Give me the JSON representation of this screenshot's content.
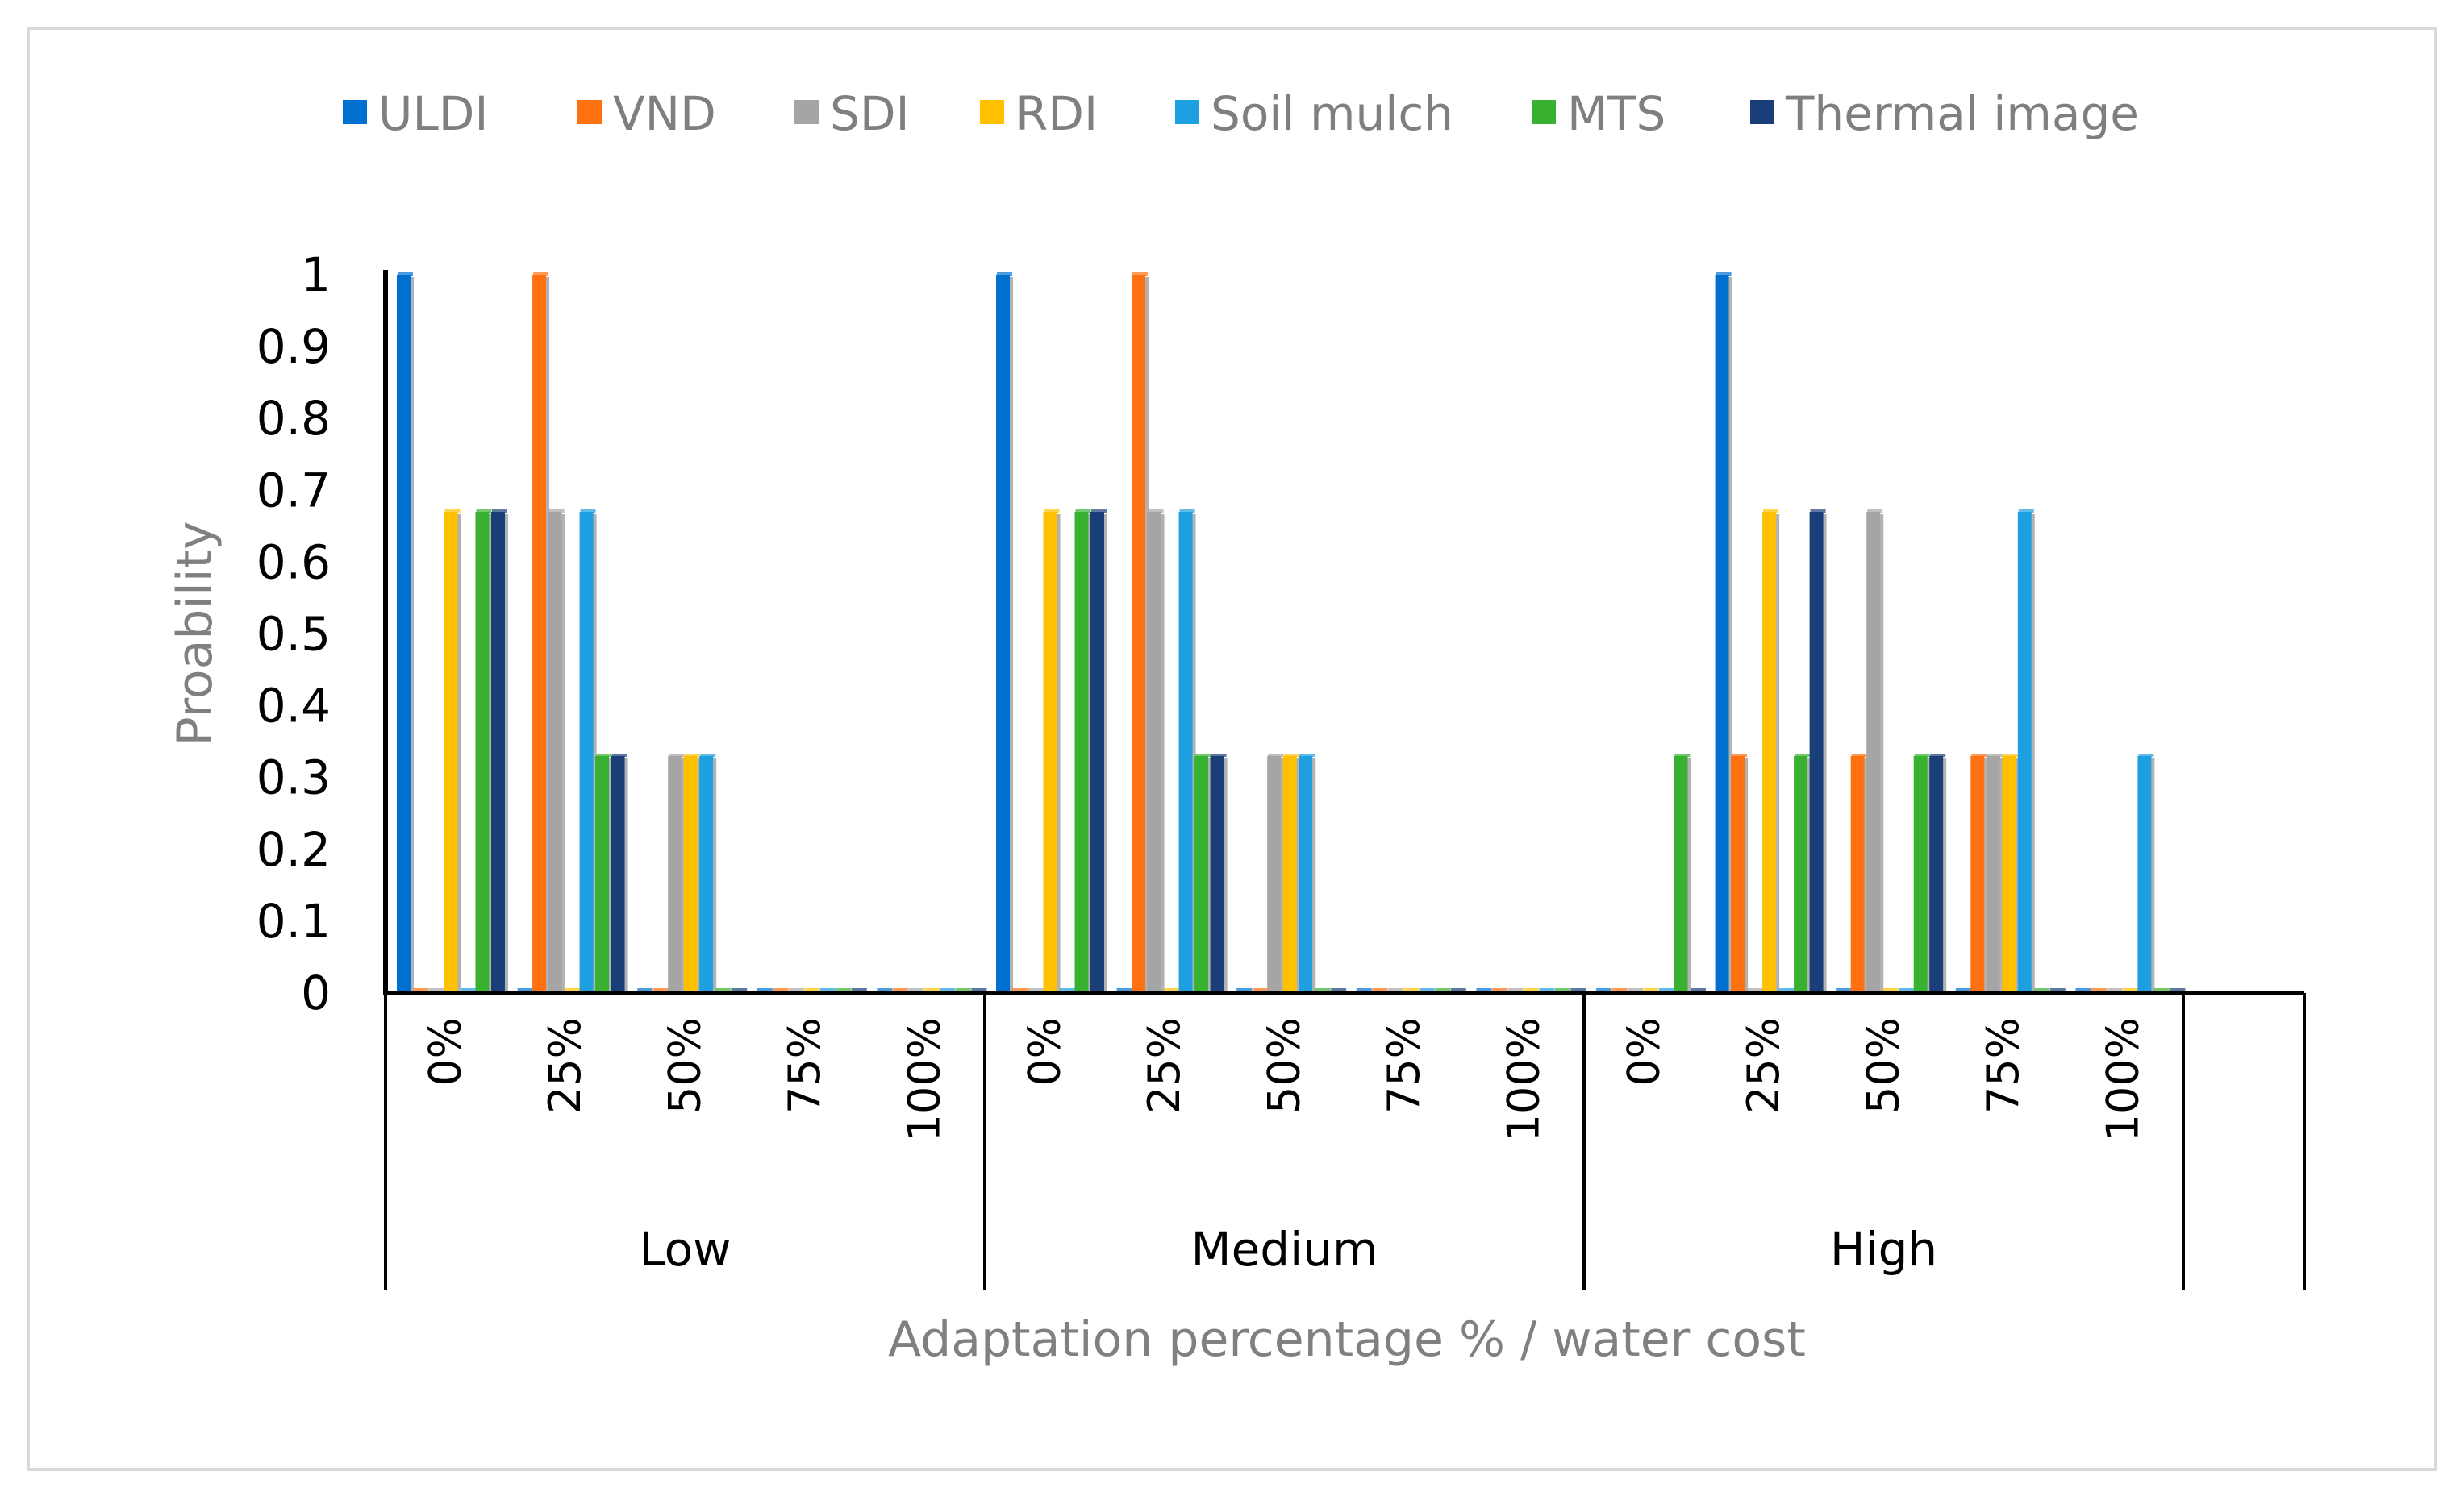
{
  "chart_data": {
    "type": "bar",
    "title": "",
    "xlabel": "Adaptation percentage % / water cost",
    "ylabel": "Proability",
    "ylim": [
      0,
      1
    ],
    "yticks": [
      "0",
      "0.1",
      "0.2",
      "0.3",
      "0.4",
      "0.5",
      "0.6",
      "0.7",
      "0.8",
      "0.9",
      "1"
    ],
    "grid": false,
    "legend_position": "top",
    "groups": [
      "Low",
      "Medium",
      "High"
    ],
    "subcategories": [
      "0%",
      "25%",
      "50%",
      "75%",
      "100%"
    ],
    "categories": [
      "Low 0%",
      "Low 25%",
      "Low 50%",
      "Low 75%",
      "Low 100%",
      "Medium 0%",
      "Medium 25%",
      "Medium 50%",
      "Medium 75%",
      "Medium 100%",
      "High 0%",
      "High 25%",
      "High 50%",
      "High 75%",
      "High 100%"
    ],
    "series": [
      {
        "name": "ULDI",
        "color": "#0070d0",
        "values": [
          1,
          0,
          0,
          0,
          0,
          1,
          0,
          0,
          0,
          0,
          0,
          1,
          0,
          0,
          0
        ]
      },
      {
        "name": "VND",
        "color": "#ff7010",
        "values": [
          0,
          1,
          0,
          0,
          0,
          0,
          1,
          0,
          0,
          0,
          0,
          0.33,
          0.33,
          0.33,
          0
        ]
      },
      {
        "name": "SDI",
        "color": "#a5a5a5",
        "values": [
          0,
          0.67,
          0.33,
          0,
          0,
          0,
          0.67,
          0.33,
          0,
          0,
          0,
          0,
          0.67,
          0.33,
          0
        ]
      },
      {
        "name": "RDI",
        "color": "#ffc000",
        "values": [
          0.67,
          0,
          0.33,
          0,
          0,
          0.67,
          0,
          0.33,
          0,
          0,
          0,
          0.67,
          0,
          0.33,
          0
        ]
      },
      {
        "name": "Soil mulch",
        "color": "#1ea0e0",
        "values": [
          0,
          0.67,
          0.33,
          0,
          0,
          0,
          0.67,
          0.33,
          0,
          0,
          0,
          0,
          0,
          0.67,
          0.33
        ]
      },
      {
        "name": "MTS",
        "color": "#38b030",
        "values": [
          0.67,
          0.33,
          0,
          0,
          0,
          0.67,
          0.33,
          0,
          0,
          0,
          0.33,
          0.33,
          0.33,
          0,
          0
        ]
      },
      {
        "name": "Thermal image",
        "color": "#1a3f78",
        "values": [
          0.67,
          0.33,
          0,
          0,
          0,
          0.67,
          0.33,
          0,
          0,
          0,
          0,
          0.67,
          0.33,
          0,
          0
        ]
      }
    ]
  }
}
